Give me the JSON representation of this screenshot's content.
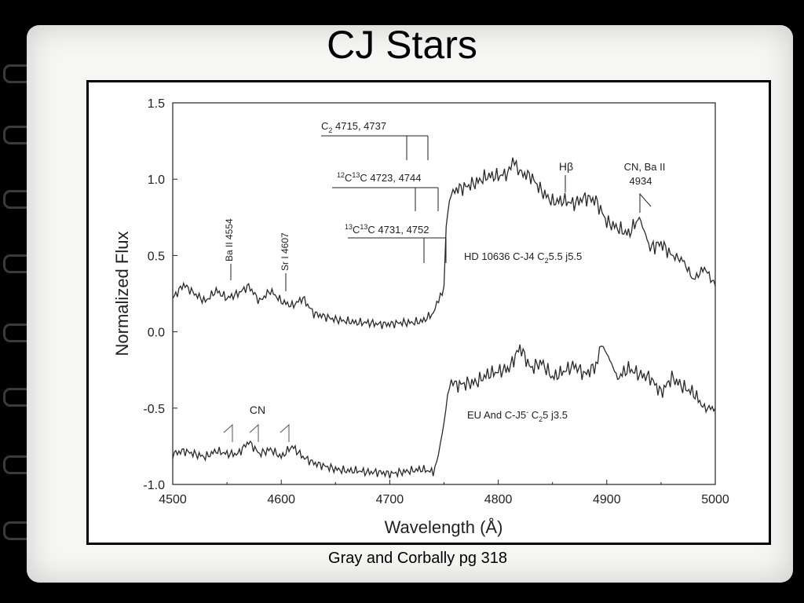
{
  "slide": {
    "title": "CJ Stars",
    "caption": "Gray and Corbally pg 318"
  },
  "chart_data": {
    "type": "line",
    "xlabel": "Wavelength (Å)",
    "ylabel": "Normalized Flux",
    "xlim": [
      4500,
      5000
    ],
    "ylim": [
      -1.0,
      1.5
    ],
    "x_ticks": [
      "4500",
      "4600",
      "4700",
      "4800",
      "4900",
      "5000"
    ],
    "y_ticks": [
      "1.5",
      "1.0",
      "0.5",
      "0.0",
      "-0.5",
      "-1.0"
    ],
    "grid": false,
    "series": [
      {
        "label": "HD 10636  C-J4 C2 5.5 j5.5",
        "x": [
          4500,
          4510,
          4520,
          4530,
          4540,
          4550,
          4560,
          4570,
          4580,
          4590,
          4600,
          4610,
          4620,
          4630,
          4640,
          4650,
          4660,
          4670,
          4680,
          4690,
          4700,
          4710,
          4720,
          4730,
          4740,
          4745,
          4750,
          4752,
          4755,
          4760,
          4770,
          4780,
          4790,
          4800,
          4810,
          4815,
          4820,
          4830,
          4840,
          4850,
          4860,
          4870,
          4880,
          4890,
          4900,
          4910,
          4920,
          4930,
          4940,
          4950,
          4960,
          4970,
          4980,
          4990,
          5000
        ],
        "y": [
          0.22,
          0.31,
          0.25,
          0.2,
          0.27,
          0.22,
          0.25,
          0.3,
          0.2,
          0.27,
          0.2,
          0.17,
          0.22,
          0.12,
          0.1,
          0.08,
          0.07,
          0.06,
          0.06,
          0.05,
          0.05,
          0.06,
          0.06,
          0.07,
          0.12,
          0.2,
          0.3,
          0.7,
          0.85,
          0.93,
          0.95,
          0.98,
          1.02,
          1.02,
          1.04,
          1.14,
          1.04,
          1.02,
          0.92,
          0.85,
          0.86,
          0.84,
          0.88,
          0.86,
          0.72,
          0.68,
          0.64,
          0.75,
          0.55,
          0.58,
          0.5,
          0.47,
          0.34,
          0.42,
          0.3
        ]
      },
      {
        "label": "EU And  C-J5- C2 5 j3.5",
        "x": [
          4500,
          4510,
          4520,
          4530,
          4540,
          4550,
          4560,
          4570,
          4580,
          4590,
          4600,
          4610,
          4620,
          4630,
          4640,
          4650,
          4660,
          4670,
          4680,
          4690,
          4700,
          4710,
          4720,
          4730,
          4740,
          4745,
          4750,
          4755,
          4760,
          4770,
          4780,
          4790,
          4800,
          4810,
          4820,
          4830,
          4840,
          4850,
          4860,
          4870,
          4880,
          4890,
          4895,
          4900,
          4910,
          4920,
          4930,
          4940,
          4950,
          4960,
          4970,
          4980,
          4990,
          5000
        ],
        "y": [
          -0.8,
          -0.78,
          -0.8,
          -0.82,
          -0.78,
          -0.8,
          -0.8,
          -0.72,
          -0.8,
          -0.77,
          -0.82,
          -0.75,
          -0.82,
          -0.86,
          -0.88,
          -0.9,
          -0.91,
          -0.91,
          -0.92,
          -0.92,
          -0.93,
          -0.92,
          -0.91,
          -0.9,
          -0.92,
          -0.8,
          -0.6,
          -0.32,
          -0.35,
          -0.34,
          -0.33,
          -0.28,
          -0.26,
          -0.24,
          -0.1,
          -0.24,
          -0.2,
          -0.3,
          -0.26,
          -0.22,
          -0.28,
          -0.22,
          -0.1,
          -0.14,
          -0.3,
          -0.24,
          -0.28,
          -0.3,
          -0.4,
          -0.3,
          -0.36,
          -0.4,
          -0.5,
          -0.5
        ]
      }
    ],
    "annotations": {
      "c2": "4715, 4737",
      "c12c13": "4723, 4744",
      "c13c13": "4731, 4752",
      "hbeta": "Hβ",
      "cn_ba": "CN, Ba II",
      "cn_ba_wl": "4934",
      "ba_ii": "Ba II 4554",
      "sr_i": "Sr I 4607",
      "cn": "CN",
      "star1_name": "HD 10636  C-J4 C",
      "star1_sub": "2",
      "star1_rest": "5.5 j5.5",
      "star2_name": "EU And  C-J5",
      "star2_sup": "-",
      "star2_mid": " C",
      "star2_sub": "2",
      "star2_rest": "5 j3.5"
    },
    "colors": {
      "line": "#2a2a2a",
      "text": "#222222"
    }
  }
}
